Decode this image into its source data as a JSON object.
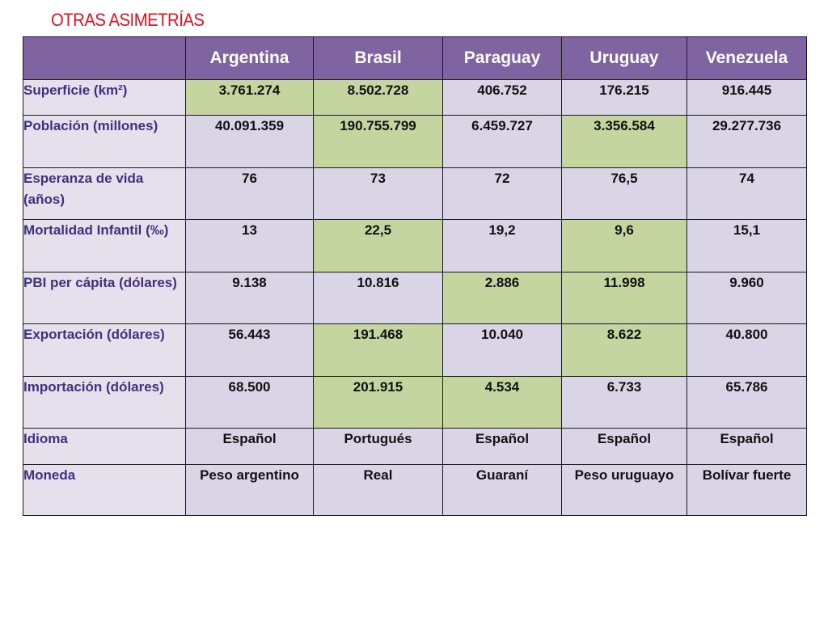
{
  "slide_title": "OTRAS ASIMETRÍAS",
  "columns": [
    "",
    "Argentina",
    "Brasil",
    "Paraguay",
    "Uruguay",
    "Venezuela"
  ],
  "rows": [
    {
      "label": "Superficie (km²)",
      "values": [
        "3.761.274",
        "8.502.728",
        "406.752",
        "176.215",
        "916.445"
      ]
    },
    {
      "label": "Población (millones)",
      "values": [
        "40.091.359",
        "190.755.799",
        "6.459.727",
        "3.356.584",
        "29.277.736"
      ]
    },
    {
      "label": "Esperanza de vida (años)",
      "values": [
        "76",
        "73",
        "72",
        "76,5",
        "74"
      ]
    },
    {
      "label": "Mortalidad Infantil (‰)",
      "values": [
        "13",
        "22,5",
        "19,2",
        "9,6",
        "15,1"
      ]
    },
    {
      "label": "PBI per cápita (dólares)",
      "values": [
        "9.138",
        "10.816",
        "2.886",
        "11.998",
        "9.960"
      ]
    },
    {
      "label": "Exportación (dólares)",
      "values": [
        "56.443",
        "191.468",
        "10.040",
        "8.622",
        "40.800"
      ]
    },
    {
      "label": "Importación (dólares)",
      "values": [
        "68.500",
        "201.915",
        "4.534",
        "6.733",
        "65.786"
      ]
    },
    {
      "label": "Idioma",
      "values": [
        "Español",
        "Portugués",
        "Español",
        "Español",
        "Español"
      ]
    },
    {
      "label": "Moneda",
      "values": [
        "Peso argentino",
        "Real",
        "Guaraní",
        "Peso uruguayo",
        "Bolívar fuerte"
      ]
    }
  ],
  "colors": {
    "title": "#e8101f",
    "header_bg": "#8064a2",
    "label_bg": "#e6e0ec",
    "cell_lavender": "#d9d5e6",
    "cell_green": "#c5d5a0",
    "label_text": "#403080"
  }
}
